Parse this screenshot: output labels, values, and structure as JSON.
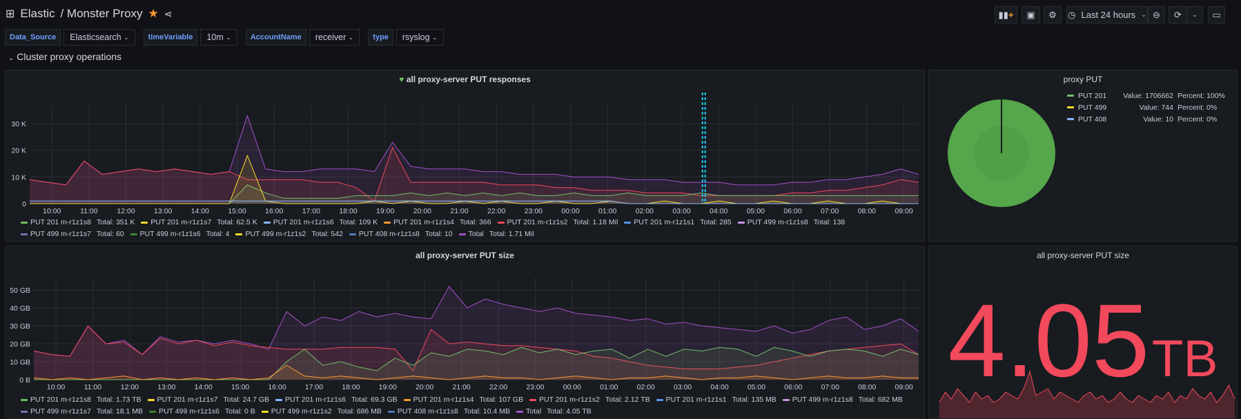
{
  "header": {
    "app": "Elastic",
    "title": "/ Monster Proxy",
    "time_range": "Last 24 hours"
  },
  "variables": [
    {
      "label": "Data_Source",
      "value": "Elasticsearch"
    },
    {
      "label": "timeVariable",
      "value": "10m"
    },
    {
      "label": "AccountName",
      "value": "receiver"
    },
    {
      "label": "type",
      "value": "rsyslog"
    }
  ],
  "row_title": "Cluster proxy operations",
  "colors": {
    "green": "#73bf69",
    "yellow": "#fade2a",
    "lightblue": "#8ab8ff",
    "orange": "#ff9830",
    "red": "#f2495c",
    "blue": "#5794f2",
    "pink": "#ca95e5",
    "violet": "#806eb7",
    "dkgreen": "#37872d",
    "steel": "#4f7dbe",
    "purple": "#a352cc",
    "cyan": "#19d1f5"
  },
  "panel_responses": {
    "title": "all proxy-server PUT responses",
    "legend": [
      {
        "name": "PUT 201 m-r1z1s8",
        "total": "Total: 351 K",
        "color": "#73bf69"
      },
      {
        "name": "PUT 201 m-r1z1s7",
        "total": "Total: 62.5 K",
        "color": "#fade2a"
      },
      {
        "name": "PUT 201 m-r1z1s6",
        "total": "Total: 109 K",
        "color": "#8ab8ff"
      },
      {
        "name": "PUT 201 m-r1z1s4",
        "total": "Total: 366",
        "color": "#ff9830"
      },
      {
        "name": "PUT 201 m-r1z1s2",
        "total": "Total: 1.18 Mil",
        "color": "#f2495c"
      },
      {
        "name": "PUT 201 m-r1z1s1",
        "total": "Total: 285",
        "color": "#5794f2"
      },
      {
        "name": "PUT 499 m-r1z1s8",
        "total": "Total: 138",
        "color": "#ca95e5"
      },
      {
        "name": "PUT 499 m-r1z1s7",
        "total": "Total: 60",
        "color": "#806eb7"
      },
      {
        "name": "PUT 499 m-r1z1s6",
        "total": "Total: 4",
        "color": "#37872d"
      },
      {
        "name": "PUT 499 m-r1z1s2",
        "total": "Total: 542",
        "color": "#fade2a"
      },
      {
        "name": "PUT 408 m-r1z1s8",
        "total": "Total: 10",
        "color": "#4f7dbe"
      },
      {
        "name": "Total",
        "total": "Total: 1.71 Mil",
        "color": "#a352cc"
      }
    ]
  },
  "panel_pie": {
    "title": "proxy PUT",
    "legend": [
      {
        "name": "PUT 201",
        "value": "Value: 1706662",
        "percent": "Percent: 100%",
        "color": "#73bf69"
      },
      {
        "name": "PUT 499",
        "value": "Value: 744",
        "percent": "Percent: 0%",
        "color": "#fade2a"
      },
      {
        "name": "PUT 408",
        "value": "Value: 10",
        "percent": "Percent: 0%",
        "color": "#8ab8ff"
      }
    ]
  },
  "panel_size": {
    "title": "all proxy-server PUT size",
    "legend": [
      {
        "name": "PUT 201 m-r1z1s8",
        "total": "Total: 1.73 TB",
        "color": "#73bf69"
      },
      {
        "name": "PUT 201 m-r1z1s7",
        "total": "Total: 24.7 GB",
        "color": "#fade2a"
      },
      {
        "name": "PUT 201 m-r1z1s6",
        "total": "Total: 69.3 GB",
        "color": "#8ab8ff"
      },
      {
        "name": "PUT 201 m-r1z1s4",
        "total": "Total: 107 GB",
        "color": "#ff9830"
      },
      {
        "name": "PUT 201 m-r1z1s2",
        "total": "Total: 2.12 TB",
        "color": "#f2495c"
      },
      {
        "name": "PUT 201 m-r1z1s1",
        "total": "Total: 135 MB",
        "color": "#5794f2"
      },
      {
        "name": "PUT 499 m-r1z1s8",
        "total": "Total: 682 MB",
        "color": "#ca95e5"
      },
      {
        "name": "PUT 499 m-r1z1s7",
        "total": "Total: 18.1 MB",
        "color": "#806eb7"
      },
      {
        "name": "PUT 499 m-r1z1s6",
        "total": "Total: 0 B",
        "color": "#37872d"
      },
      {
        "name": "PUT 499 m-r1z1s2",
        "total": "Total: 686 MB",
        "color": "#fade2a"
      },
      {
        "name": "PUT 408 m-r1z1s8",
        "total": "Total: 10.4 MB",
        "color": "#4f7dbe"
      },
      {
        "name": "Total",
        "total": "Total: 4.05 TB",
        "color": "#a352cc"
      }
    ]
  },
  "panel_stat": {
    "title": "all proxy-server PUT size",
    "value": "4.05",
    "unit": "TB",
    "color": "#f2495c"
  },
  "chart_data": [
    {
      "type": "line",
      "title": "all proxy-server PUT responses",
      "x_start_hour": 9.4,
      "x_end_hour": 33.4,
      "x_ticks": [
        "10:00",
        "11:00",
        "12:00",
        "13:00",
        "14:00",
        "15:00",
        "16:00",
        "17:00",
        "18:00",
        "19:00",
        "20:00",
        "21:00",
        "22:00",
        "23:00",
        "00:00",
        "01:00",
        "02:00",
        "03:00",
        "04:00",
        "05:00",
        "06:00",
        "07:00",
        "08:00",
        "09:00"
      ],
      "y_ticks": [
        "0",
        "10 K",
        "20 K",
        "30 K"
      ],
      "ylim": [
        0,
        37
      ],
      "annotation_hour": 27.6,
      "series": [
        {
          "name": "Total",
          "color": "#a352cc",
          "values": [
            9,
            8,
            7,
            16,
            11,
            12,
            13,
            12,
            13,
            12,
            11,
            12,
            33,
            13,
            12,
            12,
            13,
            13,
            13,
            12,
            23,
            14,
            13,
            13,
            13,
            12,
            12,
            11,
            11,
            11,
            10,
            10,
            10,
            9,
            9,
            9,
            8,
            8,
            8,
            7,
            7,
            7,
            8,
            8,
            9,
            9,
            10,
            11,
            13,
            11
          ]
        },
        {
          "name": "PUT 201 m-r1z1s2",
          "color": "#f2495c",
          "values": [
            9,
            8,
            7,
            16,
            11,
            12,
            13,
            12,
            13,
            12,
            11,
            12,
            9,
            9,
            9,
            9,
            8,
            8,
            6,
            1,
            21,
            8,
            8,
            8,
            8,
            8,
            7,
            7,
            7,
            6,
            6,
            5,
            5,
            5,
            4,
            4,
            4,
            3,
            3,
            3,
            3,
            3,
            4,
            4,
            5,
            5,
            6,
            7,
            9,
            8
          ]
        },
        {
          "name": "PUT 201 m-r1z1s8",
          "color": "#73bf69",
          "values": [
            0,
            0,
            0,
            0,
            0,
            0,
            0,
            0,
            0,
            0,
            0,
            0,
            7,
            4,
            2,
            2,
            2,
            2,
            3,
            3,
            3,
            4,
            3,
            4,
            3,
            4,
            3,
            4,
            3,
            3,
            4,
            3,
            3,
            4,
            3,
            3,
            3,
            4,
            3,
            3,
            3,
            3,
            3,
            3,
            3,
            3,
            3,
            3,
            3,
            3
          ]
        },
        {
          "name": "PUT 201 m-r1z1s7",
          "color": "#fade2a",
          "values": [
            0,
            0,
            0,
            0,
            0,
            0,
            0,
            0,
            0,
            0,
            0,
            0,
            18,
            1,
            0,
            0,
            0,
            0,
            0,
            1,
            0,
            1,
            0,
            0,
            1,
            0,
            1,
            0,
            0,
            1,
            0,
            0,
            1,
            0,
            0,
            1,
            0,
            0,
            1,
            0,
            0,
            1,
            0,
            0,
            1,
            0,
            0,
            1,
            0,
            0
          ]
        },
        {
          "name": "PUT 201 m-r1z1s6",
          "color": "#8ab8ff",
          "values": [
            1,
            1,
            1,
            1,
            1,
            1,
            1,
            1,
            1,
            1,
            1,
            1,
            1,
            1,
            1,
            1,
            1,
            1,
            1,
            1,
            1,
            1,
            1,
            1,
            1,
            1,
            1,
            1,
            1,
            1,
            1,
            1,
            1,
            0,
            0,
            0,
            0,
            0,
            0,
            0,
            0,
            0,
            0,
            0,
            0,
            0,
            0,
            0,
            0,
            0
          ]
        }
      ]
    },
    {
      "type": "pie",
      "title": "proxy PUT",
      "slices": [
        {
          "label": "PUT 201",
          "value": 1706662
        },
        {
          "label": "PUT 499",
          "value": 744
        },
        {
          "label": "PUT 408",
          "value": 10
        }
      ]
    },
    {
      "type": "line",
      "title": "all proxy-server PUT size",
      "x_start_hour": 9.4,
      "x_end_hour": 33.4,
      "x_ticks": [
        "10:00",
        "11:00",
        "12:00",
        "13:00",
        "14:00",
        "15:00",
        "16:00",
        "17:00",
        "18:00",
        "19:00",
        "20:00",
        "21:00",
        "22:00",
        "23:00",
        "00:00",
        "01:00",
        "02:00",
        "03:00",
        "04:00",
        "05:00",
        "06:00",
        "07:00",
        "08:00",
        "09:00"
      ],
      "y_ticks": [
        "0 B",
        "10 GB",
        "20 GB",
        "30 GB",
        "40 GB",
        "50 GB"
      ],
      "ylim": [
        0,
        57
      ],
      "series": [
        {
          "name": "Total",
          "color": "#a352cc",
          "values": [
            16,
            14,
            13,
            30,
            20,
            22,
            14,
            24,
            21,
            22,
            20,
            22,
            20,
            17,
            38,
            30,
            35,
            33,
            38,
            35,
            37,
            35,
            34,
            52,
            40,
            45,
            42,
            40,
            38,
            40,
            37,
            36,
            35,
            33,
            34,
            31,
            32,
            30,
            29,
            28,
            27,
            30,
            26,
            28,
            33,
            35,
            28,
            30,
            34,
            27
          ]
        },
        {
          "name": "PUT 201 m-r1z1s2",
          "color": "#f2495c",
          "values": [
            16,
            14,
            13,
            30,
            20,
            21,
            14,
            23,
            20,
            22,
            19,
            21,
            19,
            18,
            17,
            17,
            17,
            18,
            18,
            18,
            17,
            5,
            28,
            20,
            21,
            20,
            19,
            19,
            18,
            17,
            16,
            13,
            12,
            10,
            8,
            7,
            6,
            6,
            6,
            7,
            8,
            10,
            12,
            14,
            16,
            17,
            18,
            19,
            20,
            14
          ]
        },
        {
          "name": "PUT 201 m-r1z1s8",
          "color": "#73bf69",
          "values": [
            0,
            0,
            0,
            0,
            0,
            0,
            0,
            0,
            0,
            0,
            0,
            0,
            0,
            0,
            10,
            17,
            8,
            10,
            7,
            5,
            12,
            8,
            15,
            13,
            17,
            16,
            14,
            18,
            15,
            17,
            14,
            16,
            17,
            12,
            17,
            13,
            17,
            16,
            18,
            17,
            13,
            18,
            16,
            13,
            16,
            17,
            16,
            13,
            17,
            14
          ]
        },
        {
          "name": "PUT 201 m-r1z1s4",
          "color": "#ff9830",
          "values": [
            1,
            0,
            1,
            0,
            1,
            2,
            0,
            1,
            0,
            1,
            0,
            1,
            0,
            1,
            8,
            2,
            1,
            2,
            1,
            0,
            1,
            2,
            1,
            0,
            1,
            2,
            1,
            1,
            0,
            1,
            2,
            1,
            0,
            1,
            1,
            2,
            1,
            0,
            1,
            1,
            2,
            1,
            0,
            1,
            2,
            1,
            1,
            2,
            1,
            1
          ]
        }
      ]
    },
    {
      "type": "area",
      "title": "all proxy-server PUT size sparkline",
      "values": [
        5,
        8,
        6,
        9,
        7,
        5,
        8,
        6,
        7,
        5,
        6,
        8,
        7,
        6,
        9,
        14,
        7,
        8,
        9,
        6,
        8,
        7,
        6,
        5,
        7,
        8,
        6,
        7,
        5,
        6,
        8,
        6,
        5,
        7,
        6,
        5,
        7,
        6,
        8,
        5,
        7,
        6,
        9,
        7,
        6,
        8,
        5,
        7,
        10,
        6
      ]
    }
  ]
}
